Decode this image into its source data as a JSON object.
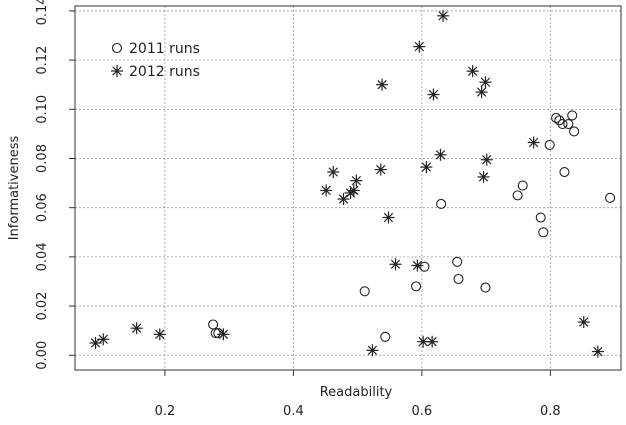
{
  "chart_data": {
    "type": "scatter",
    "title": "",
    "xlabel": "Readability",
    "ylabel": "Informativeness",
    "xlim": [
      0.06,
      0.91
    ],
    "ylim": [
      -0.006,
      0.142
    ],
    "x_ticks": [
      0.2,
      0.4,
      0.6,
      0.8
    ],
    "x_tick_labels": [
      "0.2",
      "0.4",
      "0.6",
      "0.8"
    ],
    "y_ticks": [
      0.0,
      0.02,
      0.04,
      0.06,
      0.08,
      0.1,
      0.12,
      0.14
    ],
    "y_tick_labels": [
      "0.00",
      "0.02",
      "0.04",
      "0.06",
      "0.08",
      "0.10",
      "0.12",
      "0.14"
    ],
    "grid": true,
    "legend_position": "top-left",
    "series": [
      {
        "name": "2011 runs",
        "marker": "circle",
        "points": [
          [
            0.275,
            0.0125
          ],
          [
            0.279,
            0.009
          ],
          [
            0.283,
            0.009
          ],
          [
            0.511,
            0.026
          ],
          [
            0.543,
            0.0075
          ],
          [
            0.591,
            0.028
          ],
          [
            0.604,
            0.036
          ],
          [
            0.63,
            0.0615
          ],
          [
            0.655,
            0.038
          ],
          [
            0.657,
            0.031
          ],
          [
            0.699,
            0.0275
          ],
          [
            0.749,
            0.065
          ],
          [
            0.757,
            0.069
          ],
          [
            0.785,
            0.056
          ],
          [
            0.789,
            0.05
          ],
          [
            0.799,
            0.0855
          ],
          [
            0.809,
            0.0965
          ],
          [
            0.814,
            0.0955
          ],
          [
            0.819,
            0.094
          ],
          [
            0.822,
            0.0745
          ],
          [
            0.828,
            0.094
          ],
          [
            0.834,
            0.0975
          ],
          [
            0.837,
            0.091
          ],
          [
            0.893,
            0.064
          ]
        ]
      },
      {
        "name": "2012 runs",
        "marker": "asterisk",
        "points": [
          [
            0.092,
            0.005
          ],
          [
            0.104,
            0.0065
          ],
          [
            0.156,
            0.011
          ],
          [
            0.192,
            0.0085
          ],
          [
            0.291,
            0.0085
          ],
          [
            0.451,
            0.067
          ],
          [
            0.462,
            0.0745
          ],
          [
            0.478,
            0.0635
          ],
          [
            0.489,
            0.066
          ],
          [
            0.494,
            0.067
          ],
          [
            0.498,
            0.071
          ],
          [
            0.523,
            0.002
          ],
          [
            0.536,
            0.0755
          ],
          [
            0.538,
            0.11
          ],
          [
            0.548,
            0.056
          ],
          [
            0.559,
            0.037
          ],
          [
            0.593,
            0.0365
          ],
          [
            0.596,
            0.1255
          ],
          [
            0.602,
            0.0055
          ],
          [
            0.607,
            0.0765
          ],
          [
            0.616,
            0.0055
          ],
          [
            0.618,
            0.106
          ],
          [
            0.629,
            0.0815
          ],
          [
            0.633,
            0.138
          ],
          [
            0.679,
            0.1155
          ],
          [
            0.693,
            0.107
          ],
          [
            0.696,
            0.0725
          ],
          [
            0.699,
            0.111
          ],
          [
            0.701,
            0.0795
          ],
          [
            0.774,
            0.0865
          ],
          [
            0.852,
            0.0135
          ],
          [
            0.874,
            0.0015
          ]
        ]
      }
    ]
  }
}
